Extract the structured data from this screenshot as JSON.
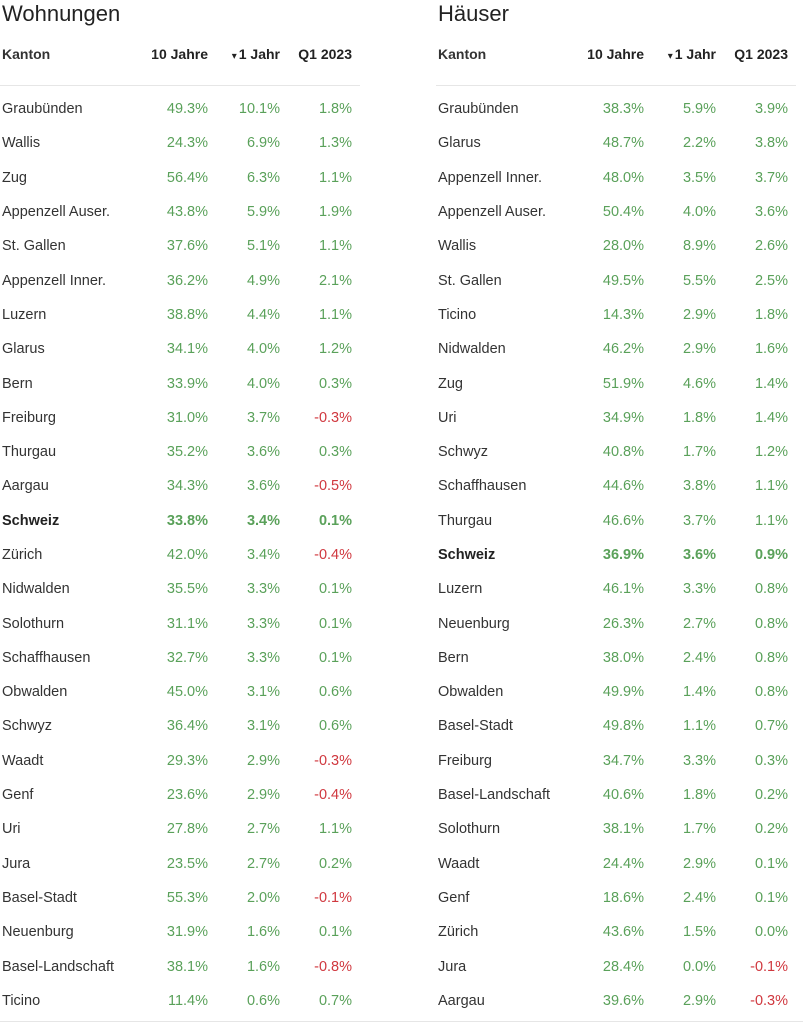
{
  "chart_data": [
    {
      "type": "table",
      "title": "Wohnungen",
      "columns": [
        "Kanton",
        "10 Jahre",
        "1 Jahr",
        "Q1 2023"
      ],
      "sort_indicator": "▾",
      "rows": [
        {
          "kanton": "Graubünden",
          "y10": "49.3%",
          "y1": "10.1%",
          "q1": "1.8%"
        },
        {
          "kanton": "Wallis",
          "y10": "24.3%",
          "y1": "6.9%",
          "q1": "1.3%"
        },
        {
          "kanton": "Zug",
          "y10": "56.4%",
          "y1": "6.3%",
          "q1": "1.1%"
        },
        {
          "kanton": "Appenzell Auser.",
          "y10": "43.8%",
          "y1": "5.9%",
          "q1": "1.9%"
        },
        {
          "kanton": "St. Gallen",
          "y10": "37.6%",
          "y1": "5.1%",
          "q1": "1.1%"
        },
        {
          "kanton": "Appenzell Inner.",
          "y10": "36.2%",
          "y1": "4.9%",
          "q1": "2.1%"
        },
        {
          "kanton": "Luzern",
          "y10": "38.8%",
          "y1": "4.4%",
          "q1": "1.1%"
        },
        {
          "kanton": "Glarus",
          "y10": "34.1%",
          "y1": "4.0%",
          "q1": "1.2%"
        },
        {
          "kanton": "Bern",
          "y10": "33.9%",
          "y1": "4.0%",
          "q1": "0.3%"
        },
        {
          "kanton": "Freiburg",
          "y10": "31.0%",
          "y1": "3.7%",
          "q1": "-0.3%"
        },
        {
          "kanton": "Thurgau",
          "y10": "35.2%",
          "y1": "3.6%",
          "q1": "0.3%"
        },
        {
          "kanton": "Aargau",
          "y10": "34.3%",
          "y1": "3.6%",
          "q1": "-0.5%"
        },
        {
          "kanton": "Schweiz",
          "y10": "33.8%",
          "y1": "3.4%",
          "q1": "0.1%",
          "bold": true
        },
        {
          "kanton": "Zürich",
          "y10": "42.0%",
          "y1": "3.4%",
          "q1": "-0.4%"
        },
        {
          "kanton": "Nidwalden",
          "y10": "35.5%",
          "y1": "3.3%",
          "q1": "0.1%"
        },
        {
          "kanton": "Solothurn",
          "y10": "31.1%",
          "y1": "3.3%",
          "q1": "0.1%"
        },
        {
          "kanton": "Schaffhausen",
          "y10": "32.7%",
          "y1": "3.3%",
          "q1": "0.1%"
        },
        {
          "kanton": "Obwalden",
          "y10": "45.0%",
          "y1": "3.1%",
          "q1": "0.6%"
        },
        {
          "kanton": "Schwyz",
          "y10": "36.4%",
          "y1": "3.1%",
          "q1": "0.6%"
        },
        {
          "kanton": "Waadt",
          "y10": "29.3%",
          "y1": "2.9%",
          "q1": "-0.3%"
        },
        {
          "kanton": "Genf",
          "y10": "23.6%",
          "y1": "2.9%",
          "q1": "-0.4%"
        },
        {
          "kanton": "Uri",
          "y10": "27.8%",
          "y1": "2.7%",
          "q1": "1.1%"
        },
        {
          "kanton": "Jura",
          "y10": "23.5%",
          "y1": "2.7%",
          "q1": "0.2%"
        },
        {
          "kanton": "Basel-Stadt",
          "y10": "55.3%",
          "y1": "2.0%",
          "q1": "-0.1%"
        },
        {
          "kanton": "Neuenburg",
          "y10": "31.9%",
          "y1": "1.6%",
          "q1": "0.1%"
        },
        {
          "kanton": "Basel-Landschaft",
          "y10": "38.1%",
          "y1": "1.6%",
          "q1": "-0.8%"
        },
        {
          "kanton": "Ticino",
          "y10": "11.4%",
          "y1": "0.6%",
          "q1": "0.7%"
        }
      ]
    },
    {
      "type": "table",
      "title": "Häuser",
      "columns": [
        "Kanton",
        "10 Jahre",
        "1 Jahr",
        "Q1 2023"
      ],
      "sort_indicator": "▾",
      "rows": [
        {
          "kanton": "Graubünden",
          "y10": "38.3%",
          "y1": "5.9%",
          "q1": "3.9%"
        },
        {
          "kanton": "Glarus",
          "y10": "48.7%",
          "y1": "2.2%",
          "q1": "3.8%"
        },
        {
          "kanton": "Appenzell Inner.",
          "y10": "48.0%",
          "y1": "3.5%",
          "q1": "3.7%"
        },
        {
          "kanton": "Appenzell Auser.",
          "y10": "50.4%",
          "y1": "4.0%",
          "q1": "3.6%"
        },
        {
          "kanton": "Wallis",
          "y10": "28.0%",
          "y1": "8.9%",
          "q1": "2.6%"
        },
        {
          "kanton": "St. Gallen",
          "y10": "49.5%",
          "y1": "5.5%",
          "q1": "2.5%"
        },
        {
          "kanton": "Ticino",
          "y10": "14.3%",
          "y1": "2.9%",
          "q1": "1.8%"
        },
        {
          "kanton": "Nidwalden",
          "y10": "46.2%",
          "y1": "2.9%",
          "q1": "1.6%"
        },
        {
          "kanton": "Zug",
          "y10": "51.9%",
          "y1": "4.6%",
          "q1": "1.4%"
        },
        {
          "kanton": "Uri",
          "y10": "34.9%",
          "y1": "1.8%",
          "q1": "1.4%"
        },
        {
          "kanton": "Schwyz",
          "y10": "40.8%",
          "y1": "1.7%",
          "q1": "1.2%"
        },
        {
          "kanton": "Schaffhausen",
          "y10": "44.6%",
          "y1": "3.8%",
          "q1": "1.1%"
        },
        {
          "kanton": "Thurgau",
          "y10": "46.6%",
          "y1": "3.7%",
          "q1": "1.1%"
        },
        {
          "kanton": "Schweiz",
          "y10": "36.9%",
          "y1": "3.6%",
          "q1": "0.9%",
          "bold": true
        },
        {
          "kanton": "Luzern",
          "y10": "46.1%",
          "y1": "3.3%",
          "q1": "0.8%"
        },
        {
          "kanton": "Neuenburg",
          "y10": "26.3%",
          "y1": "2.7%",
          "q1": "0.8%"
        },
        {
          "kanton": "Bern",
          "y10": "38.0%",
          "y1": "2.4%",
          "q1": "0.8%"
        },
        {
          "kanton": "Obwalden",
          "y10": "49.9%",
          "y1": "1.4%",
          "q1": "0.8%"
        },
        {
          "kanton": "Basel-Stadt",
          "y10": "49.8%",
          "y1": "1.1%",
          "q1": "0.7%"
        },
        {
          "kanton": "Freiburg",
          "y10": "34.7%",
          "y1": "3.3%",
          "q1": "0.3%"
        },
        {
          "kanton": "Basel-Landschaft",
          "y10": "40.6%",
          "y1": "1.8%",
          "q1": "0.2%"
        },
        {
          "kanton": "Solothurn",
          "y10": "38.1%",
          "y1": "1.7%",
          "q1": "0.2%"
        },
        {
          "kanton": "Waadt",
          "y10": "24.4%",
          "y1": "2.9%",
          "q1": "0.1%"
        },
        {
          "kanton": "Genf",
          "y10": "18.6%",
          "y1": "2.4%",
          "q1": "0.1%"
        },
        {
          "kanton": "Zürich",
          "y10": "43.6%",
          "y1": "1.5%",
          "q1": "0.0%"
        },
        {
          "kanton": "Jura",
          "y10": "28.4%",
          "y1": "0.0%",
          "q1": "-0.1%"
        },
        {
          "kanton": "Aargau",
          "y10": "39.6%",
          "y1": "2.9%",
          "q1": "-0.3%"
        }
      ]
    }
  ],
  "colors": {
    "positive": "#5aa15a",
    "negative": "#d0383f",
    "text": "#333333"
  }
}
